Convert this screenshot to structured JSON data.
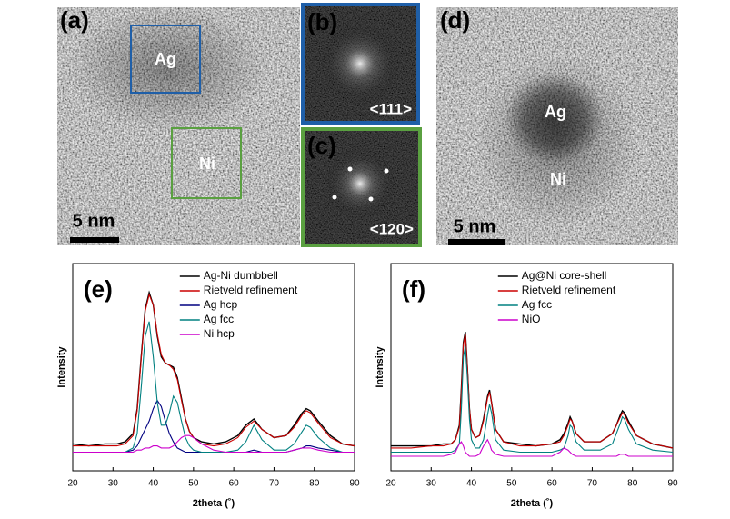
{
  "images": [
    {
      "label": "(a)",
      "regions": [
        "Ag",
        "Ni"
      ],
      "scale_bar": "5 nm"
    },
    {
      "label": "(b)",
      "zone_axis": "<111>"
    },
    {
      "label": "(c)",
      "zone_axis": "<120>"
    },
    {
      "label": "(d)",
      "regions": [
        "Ag",
        "Ni"
      ],
      "scale_bar": "5 nm"
    }
  ],
  "chart_data": [
    {
      "type": "line",
      "title": "(e)",
      "x_label": "2theta (˚)",
      "y_label": "Intensity",
      "x": [
        20,
        24,
        28,
        31,
        33,
        35,
        36,
        37,
        38,
        39,
        40,
        41,
        42,
        43,
        44,
        45,
        46,
        47,
        48,
        49,
        50,
        52,
        55,
        58,
        61,
        63,
        65,
        67,
        70,
        73,
        75,
        77,
        78,
        79,
        81,
        84,
        87,
        90
      ],
      "xlim": [
        20,
        90
      ],
      "xticks": [
        20,
        30,
        40,
        50,
        60,
        70,
        80,
        90
      ],
      "ylim": [
        0,
        100
      ],
      "legend": "upper left",
      "series": [
        {
          "name": "Ag-Ni dumbbell",
          "color": "#000000",
          "values": [
            13,
            12,
            13,
            13,
            14,
            18,
            30,
            55,
            78,
            86,
            80,
            65,
            55,
            52,
            51,
            50,
            45,
            35,
            25,
            19,
            16,
            14,
            13,
            14,
            17,
            22,
            25,
            20,
            16,
            17,
            22,
            28,
            30,
            29,
            24,
            17,
            13,
            12
          ]
        },
        {
          "name": "Rietveld refinement",
          "color": "#cc0000",
          "values": [
            12,
            12,
            12,
            12,
            13,
            17,
            29,
            54,
            77,
            85,
            80,
            66,
            56,
            52,
            51,
            49,
            44,
            34,
            25,
            19,
            16,
            13,
            12,
            13,
            16,
            21,
            24,
            20,
            16,
            17,
            21,
            27,
            29,
            28,
            23,
            16,
            13,
            12
          ]
        },
        {
          "name": "Ag hcp",
          "color": "#000080",
          "values": [
            9,
            9,
            9,
            9,
            9,
            10,
            12,
            16,
            20,
            24,
            30,
            34,
            31,
            24,
            18,
            14,
            11,
            10,
            9,
            9,
            9,
            9,
            9,
            9,
            9,
            9,
            10,
            9,
            9,
            9,
            10,
            11,
            12,
            12,
            11,
            10,
            9,
            9
          ]
        },
        {
          "name": "Ag fcc",
          "color": "#008080",
          "values": [
            9,
            9,
            9,
            9,
            9,
            11,
            18,
            40,
            65,
            72,
            55,
            33,
            22,
            22,
            28,
            36,
            33,
            24,
            16,
            12,
            10,
            9,
            9,
            9,
            10,
            14,
            22,
            15,
            10,
            10,
            13,
            19,
            22,
            21,
            16,
            11,
            9,
            9
          ]
        },
        {
          "name": "Ni hcp",
          "color": "#cc00cc",
          "values": [
            9,
            9,
            9,
            9,
            9,
            9,
            10,
            10,
            11,
            11,
            12,
            12,
            11,
            11,
            11,
            12,
            14,
            16,
            17,
            17,
            16,
            13,
            10,
            9,
            9,
            9,
            9,
            9,
            9,
            9,
            10,
            11,
            11,
            11,
            10,
            9,
            9,
            9
          ]
        }
      ]
    },
    {
      "type": "line",
      "title": "(f)",
      "x_label": "2theta (˚)",
      "y_label": "Intensity",
      "x": [
        20,
        25,
        30,
        33,
        35,
        36,
        37,
        37.5,
        38,
        38.5,
        39,
        39.5,
        40,
        41,
        42,
        43,
        44,
        44.5,
        45,
        46,
        48,
        52,
        56,
        60,
        62,
        63,
        64,
        64.5,
        65,
        66,
        68,
        72,
        75,
        76,
        77,
        77.5,
        78,
        79,
        81,
        85,
        90
      ],
      "xlim": [
        20,
        90
      ],
      "xticks": [
        20,
        30,
        40,
        50,
        60,
        70,
        80,
        90
      ],
      "ylim": [
        0,
        100
      ],
      "legend": "upper left",
      "series": [
        {
          "name": "Ag@Ni core-shell",
          "color": "#000000",
          "values": [
            12,
            12,
            12,
            13,
            13,
            15,
            22,
            40,
            62,
            67,
            50,
            30,
            20,
            16,
            17,
            25,
            36,
            39,
            33,
            20,
            14,
            13,
            12,
            13,
            15,
            18,
            23,
            26,
            24,
            18,
            14,
            14,
            18,
            22,
            27,
            29,
            28,
            24,
            17,
            13,
            11
          ]
        },
        {
          "name": "Rietveld refinement",
          "color": "#cc0000",
          "values": [
            11,
            11,
            12,
            12,
            13,
            15,
            21,
            39,
            61,
            66,
            50,
            30,
            20,
            16,
            17,
            24,
            35,
            38,
            33,
            20,
            14,
            12,
            12,
            13,
            14,
            17,
            22,
            25,
            24,
            18,
            14,
            14,
            18,
            22,
            26,
            28,
            27,
            23,
            17,
            13,
            11
          ]
        },
        {
          "name": "Ag fcc",
          "color": "#008080",
          "values": [
            9,
            9,
            9,
            9,
            9,
            10,
            13,
            30,
            55,
            60,
            45,
            25,
            15,
            11,
            11,
            15,
            27,
            32,
            28,
            15,
            10,
            9,
            9,
            9,
            10,
            11,
            17,
            22,
            21,
            14,
            10,
            10,
            13,
            18,
            23,
            26,
            25,
            20,
            13,
            10,
            9
          ]
        },
        {
          "name": "NiO",
          "color": "#cc00cc",
          "values": [
            7,
            7,
            7,
            7,
            8,
            9,
            13,
            14,
            12,
            9,
            8,
            7,
            7,
            7,
            8,
            12,
            15,
            13,
            10,
            8,
            7,
            7,
            7,
            7,
            9,
            11,
            10,
            9,
            8,
            7,
            7,
            7,
            7,
            7,
            8,
            8,
            8,
            7,
            7,
            7,
            7
          ]
        }
      ]
    }
  ]
}
